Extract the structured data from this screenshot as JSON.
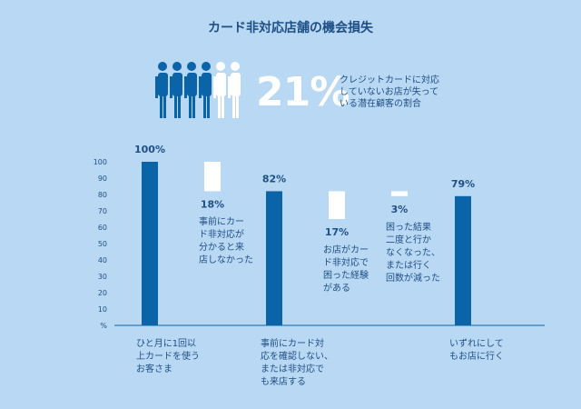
{
  "header": {
    "title": "カード非対応店舗の機会損失",
    "big_percent": "21%",
    "description": "クレジットカードに対応\nしていないお店が失って\nいる潜在顧客の割合"
  },
  "colors": {
    "background": "#b9d8f3",
    "bar": "#0b63a8",
    "loss": "#ffffff",
    "text": "#1f4f86"
  },
  "chart_data": {
    "type": "bar",
    "subtype": "waterfall",
    "ylim": [
      0,
      100
    ],
    "yticks": [
      10,
      20,
      30,
      40,
      50,
      60,
      70,
      80,
      90,
      100
    ],
    "yunit": "%",
    "bars": [
      {
        "kind": "total",
        "value": 100,
        "label": "100%",
        "category": "ひと月に1回以\n上カードを使う\nお客さま"
      },
      {
        "kind": "loss",
        "top": 100,
        "value": 18,
        "label": "18%",
        "note": "事前にカー\nド非対応が\n分かると来\n店しなかった"
      },
      {
        "kind": "total",
        "value": 82,
        "label": "82%",
        "category": "事前にカード対\n応を確認しない、\nまたは非対応で\nも来店する"
      },
      {
        "kind": "loss",
        "top": 82,
        "value": 17,
        "label": "17%",
        "note": "お店がカー\nド非対応で\n困った経験\nがある"
      },
      {
        "kind": "loss",
        "top": 82,
        "value": 3,
        "label": "3%",
        "note": "困った結果\n二度と行か\nなくなった、\nまたは行く\n回数が減った"
      },
      {
        "kind": "total",
        "value": 79,
        "label": "79%",
        "category": "いずれにして\nもお店に行く"
      }
    ]
  }
}
